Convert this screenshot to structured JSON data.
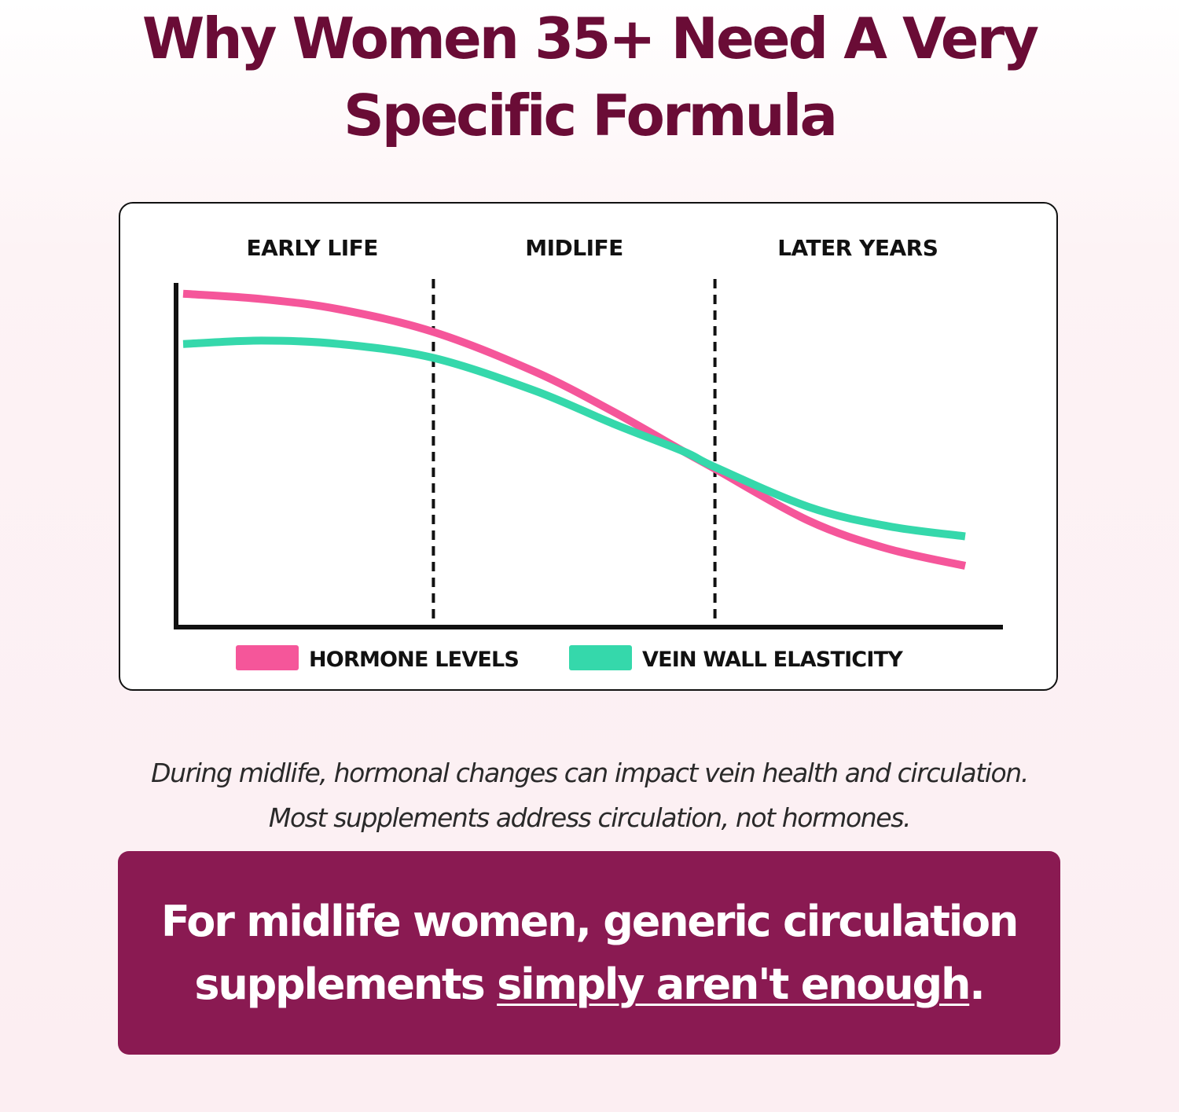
{
  "heading": {
    "line1": "Why Women 35+ Need A Very",
    "line2": "Specific Formula"
  },
  "chart_data": {
    "type": "line",
    "title": "",
    "xlabel": "",
    "ylabel": "",
    "x_axis": "relative life stage, 0 (start) to 1 (end)",
    "xlim": [
      0,
      1
    ],
    "ylim": [
      0,
      1
    ],
    "grid": false,
    "legend_position": "bottom",
    "phases": [
      "EARLY LIFE",
      "MIDLIFE",
      "LATER YEARS"
    ],
    "phase_boundaries": [
      0.32,
      0.68
    ],
    "series": [
      {
        "name": "HORMONE LEVELS",
        "color": "#f5569a",
        "x": [
          0,
          0.1,
          0.2,
          0.32,
          0.45,
          0.55,
          0.64,
          0.68,
          0.8,
          0.9,
          1.0
        ],
        "y": [
          0.955,
          0.94,
          0.91,
          0.845,
          0.73,
          0.615,
          0.5,
          0.45,
          0.3,
          0.22,
          0.17
        ]
      },
      {
        "name": "VEIN WALL ELASTICITY",
        "color": "#35d8ab",
        "x": [
          0,
          0.1,
          0.2,
          0.32,
          0.45,
          0.55,
          0.64,
          0.68,
          0.8,
          0.9,
          1.0
        ],
        "y": [
          0.81,
          0.82,
          0.81,
          0.77,
          0.675,
          0.58,
          0.5,
          0.455,
          0.34,
          0.285,
          0.255
        ]
      }
    ]
  },
  "caption": {
    "line1": "During midlife, hormonal changes can impact vein health and circulation.",
    "line2": "Most supplements address circulation, not hormones."
  },
  "callout": {
    "line1": "For midlife women, generic circulation",
    "line2_plain": "supplements ",
    "line2_emphasis": "simply aren't enough",
    "line2_end": "."
  }
}
